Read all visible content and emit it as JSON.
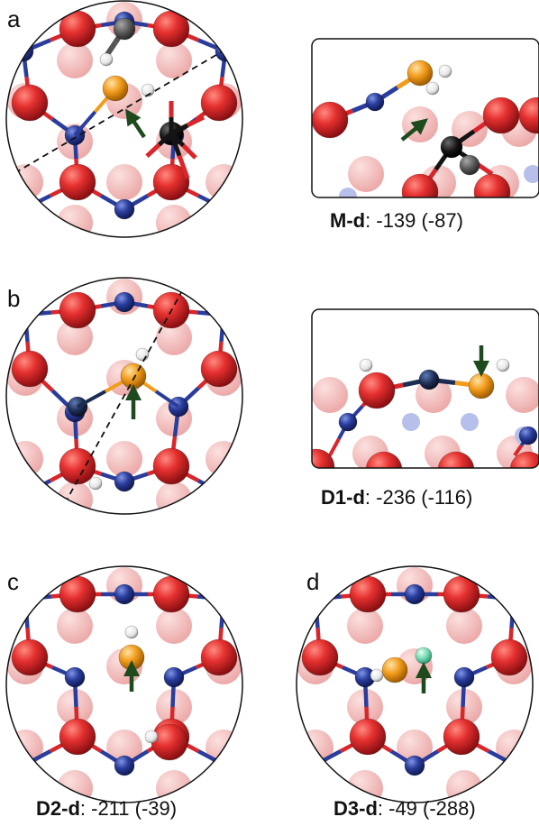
{
  "panels": {
    "a": {
      "label": "a"
    },
    "b": {
      "label": "b"
    },
    "c": {
      "label": "c"
    },
    "d": {
      "label": "d"
    }
  },
  "captions": {
    "md": {
      "name": "M-d",
      "value": ": -139 (-87)"
    },
    "d1d": {
      "name": "D1-d",
      "value": ": -236 (-116)"
    },
    "d2d": {
      "name": "D2-d",
      "value": ": -211 (-39)"
    },
    "d3d": {
      "name": "D3-d",
      "value": ": -49 (-288)"
    }
  },
  "colors": {
    "oxygen": "#d9262b",
    "metal": "#2a3d9c",
    "sulfur": "#f29c1c",
    "hydrogen": "#f2f2f2",
    "carbon_black": "#141414",
    "carbon_gray": "#5a5a5a",
    "dopant": "#1d2d52",
    "deuterium": "#6fd6b0",
    "arrow": "#1e4a1e"
  }
}
